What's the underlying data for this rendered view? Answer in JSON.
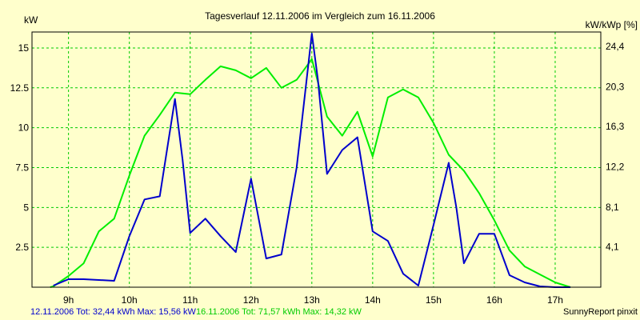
{
  "colors": {
    "background": "#ffffcc",
    "plot_border": "#000000",
    "grid": "#00cc00",
    "series_1": "#0000cc",
    "series_2": "#00ee00"
  },
  "chart_data": {
    "type": "line",
    "title": "Tagesverlauf 12.11.2006 im Vergleich zum 16.11.2006",
    "ylabel_left": "kW",
    "ylabel_right": "kW/kWp [%]",
    "grid": true,
    "xlim": [
      8.4,
      17.75
    ],
    "ylim": [
      0,
      16
    ],
    "ylim_right": [
      0,
      25.85
    ],
    "x_ticks": [
      9,
      10,
      11,
      12,
      13,
      14,
      15,
      16,
      17
    ],
    "x_tick_labels": [
      "9h",
      "10h",
      "11h",
      "12h",
      "13h",
      "14h",
      "15h",
      "16h",
      "17h"
    ],
    "y_ticks": [
      2.5,
      5,
      7.5,
      10,
      12.5,
      15
    ],
    "y_tick_labels": [
      "2.5",
      "5",
      "7.5",
      "10",
      "12.5",
      "15"
    ],
    "y_ticks_right": [
      4.1,
      8.1,
      12.2,
      16.3,
      20.3,
      24.4
    ],
    "y_tick_labels_right": [
      "4,1",
      "8,1",
      "12,2",
      "16,3",
      "20,3",
      "24,4"
    ],
    "series": [
      {
        "x": [
          8.75,
          9.0,
          9.25,
          9.5,
          9.75,
          10.0,
          10.25,
          10.5,
          10.75,
          10.875,
          11.0,
          11.25,
          11.5,
          11.75,
          12.0,
          12.25,
          12.5,
          12.75,
          13.0,
          13.1,
          13.25,
          13.5,
          13.75,
          14.0,
          14.25,
          14.5,
          14.75,
          15.0,
          15.25,
          15.375,
          15.5,
          15.75,
          16.0,
          16.25,
          16.5,
          16.75,
          17.0,
          17.25
        ],
        "y": [
          0.1,
          0.5,
          0.5,
          0.45,
          0.4,
          3.2,
          5.5,
          5.7,
          11.8,
          8.0,
          3.4,
          4.3,
          3.2,
          2.2,
          6.8,
          1.8,
          2.05,
          7.5,
          15.9,
          13.0,
          7.1,
          8.6,
          9.4,
          3.5,
          2.9,
          0.85,
          0.1,
          3.9,
          7.8,
          5.0,
          1.5,
          3.35,
          3.35,
          0.75,
          0.3,
          0.05,
          0.0,
          0.0
        ]
      },
      {
        "x": [
          8.7,
          8.75,
          9.0,
          9.25,
          9.5,
          9.75,
          10.0,
          10.25,
          10.5,
          10.75,
          11.0,
          11.25,
          11.5,
          11.75,
          12.0,
          12.25,
          12.5,
          12.75,
          13.0,
          13.25,
          13.5,
          13.75,
          14.0,
          14.25,
          14.5,
          14.75,
          15.0,
          15.25,
          15.5,
          15.75,
          16.0,
          16.25,
          16.5,
          16.75,
          17.0,
          17.25
        ],
        "y": [
          0.0,
          0.05,
          0.7,
          1.5,
          3.5,
          4.3,
          7.0,
          9.5,
          10.8,
          12.2,
          12.1,
          13.0,
          13.85,
          13.6,
          13.1,
          13.75,
          12.5,
          13.0,
          14.3,
          10.7,
          9.5,
          11.0,
          8.2,
          11.9,
          12.4,
          11.9,
          10.3,
          8.3,
          7.3,
          5.9,
          4.2,
          2.3,
          1.3,
          0.8,
          0.3,
          0.0
        ]
      }
    ]
  },
  "legend": {
    "series_1_text": "12.11.2006 Tot: 32,44 kWh Max: 15,56 kW",
    "series_2_text": "16.11.2006 Tot: 71,57 kWh Max: 14,32 kW"
  },
  "credit": "SunnyReport pinxit"
}
